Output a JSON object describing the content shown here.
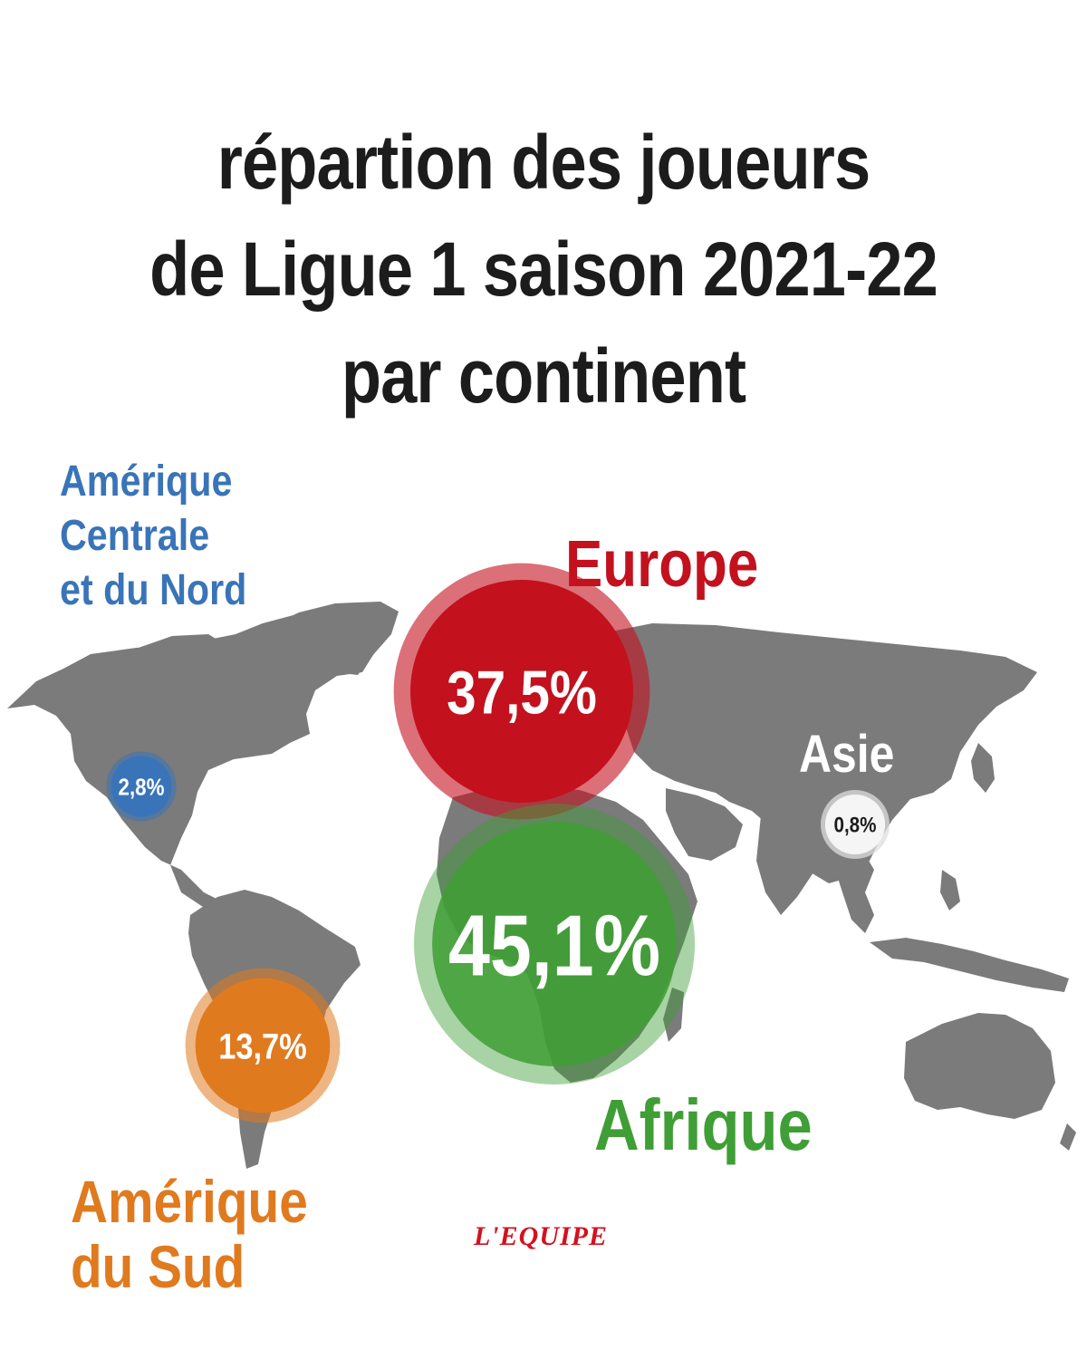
{
  "title": {
    "line1": "répartion des joueurs",
    "line2": "de Ligue 1 saison 2021-22",
    "line3": "par continent"
  },
  "regions": {
    "north_america": {
      "label_line1": "Amérique",
      "label_line2": "Centrale",
      "label_line3": "et du Nord",
      "value": "2,8%",
      "share": 2.8,
      "color": "#3a74b8"
    },
    "europe": {
      "label": "Europe",
      "value": "37,5%",
      "share": 37.5,
      "color": "#c3111e"
    },
    "asia": {
      "label": "Asie",
      "value": "0,8%",
      "share": 0.8,
      "color": "#ffffff"
    },
    "africa": {
      "label": "Afrique",
      "value": "45,1%",
      "share": 45.1,
      "color": "#3f9e35"
    },
    "south_america": {
      "label_line1": "Amérique",
      "label_line2": "du Sud",
      "value": "13,7%",
      "share": 13.7,
      "color": "#e07a1f"
    }
  },
  "land_color": "#7b7b7b",
  "logo": {
    "text": "L'EQUIPE",
    "color": "#d4111e"
  }
}
